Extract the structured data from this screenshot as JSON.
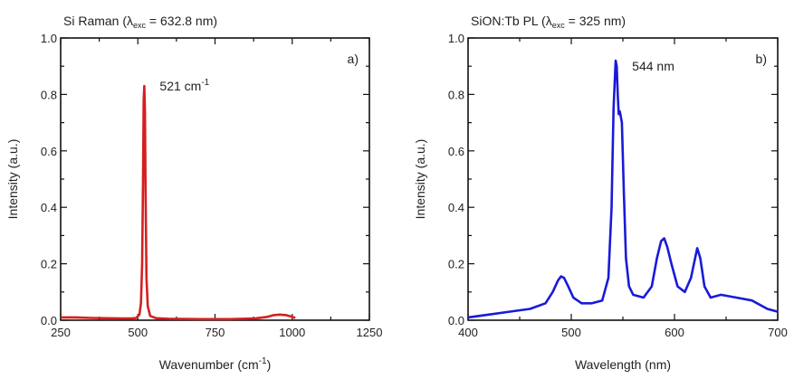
{
  "chart_data": [
    {
      "type": "line",
      "panel_label": "a)",
      "title": "Si Raman (λ",
      "title_sub": "exc",
      "title_end": " = 632.8 nm)",
      "xlabel": "Wavenumber (cm",
      "xlabel_sup": "-1",
      "xlabel_end": ")",
      "ylabel": "Intensity (a.u.)",
      "xlim": [
        250,
        1250
      ],
      "ylim": [
        0,
        1.0
      ],
      "xticks": [
        "250",
        "500",
        "750",
        "1000",
        "1250"
      ],
      "yticks": [
        "0.0",
        "0.2",
        "0.4",
        "0.6",
        "0.8",
        "1.0"
      ],
      "annotation": {
        "text": "521 cm",
        "sup": "-1",
        "x": 521,
        "y": 0.83
      },
      "color": "#d42020",
      "series": [
        {
          "x": [
            250,
            300,
            350,
            400,
            450,
            480,
            495,
            505,
            510,
            514,
            517,
            519,
            521,
            523,
            525,
            528,
            532,
            540,
            560,
            600,
            700,
            800,
            880,
            920,
            940,
            960,
            980,
            1000,
            1010
          ],
          "y": [
            0.01,
            0.01,
            0.008,
            0.007,
            0.006,
            0.006,
            0.008,
            0.02,
            0.06,
            0.2,
            0.5,
            0.78,
            0.83,
            0.74,
            0.45,
            0.15,
            0.05,
            0.015,
            0.007,
            0.005,
            0.004,
            0.004,
            0.006,
            0.012,
            0.018,
            0.02,
            0.018,
            0.012,
            0.008
          ]
        }
      ]
    },
    {
      "type": "line",
      "panel_label": "b)",
      "title": "SiON:Tb PL (λ",
      "title_sub": "exc",
      "title_end": " = 325 nm)",
      "xlabel": "Wavelength (nm)",
      "xlabel_sup": "",
      "xlabel_end": "",
      "ylabel": "Intensity (a.u.)",
      "xlim": [
        400,
        700
      ],
      "ylim": [
        0,
        1.0
      ],
      "xticks": [
        "400",
        "500",
        "600",
        "700"
      ],
      "yticks": [
        "0.0",
        "0.2",
        "0.4",
        "0.6",
        "0.8",
        "1.0"
      ],
      "annotation": {
        "text": "544 nm",
        "sup": "",
        "x": 544,
        "y": 0.9
      },
      "color": "#1a1ad8",
      "series": [
        {
          "x": [
            400,
            420,
            440,
            460,
            475,
            482,
            487,
            490,
            493,
            497,
            502,
            510,
            520,
            530,
            536,
            539,
            541,
            543,
            544,
            545,
            546,
            547,
            549,
            551,
            553,
            556,
            560,
            570,
            578,
            583,
            587,
            590,
            593,
            597,
            603,
            610,
            616,
            620,
            622,
            625,
            629,
            635,
            645,
            660,
            675,
            690,
            700
          ],
          "y": [
            0.01,
            0.02,
            0.03,
            0.04,
            0.06,
            0.1,
            0.14,
            0.155,
            0.15,
            0.12,
            0.08,
            0.06,
            0.06,
            0.07,
            0.15,
            0.4,
            0.75,
            0.92,
            0.9,
            0.8,
            0.73,
            0.74,
            0.7,
            0.45,
            0.22,
            0.12,
            0.09,
            0.08,
            0.12,
            0.22,
            0.28,
            0.29,
            0.26,
            0.2,
            0.12,
            0.1,
            0.15,
            0.22,
            0.255,
            0.22,
            0.12,
            0.08,
            0.09,
            0.08,
            0.07,
            0.04,
            0.03
          ]
        }
      ]
    }
  ]
}
